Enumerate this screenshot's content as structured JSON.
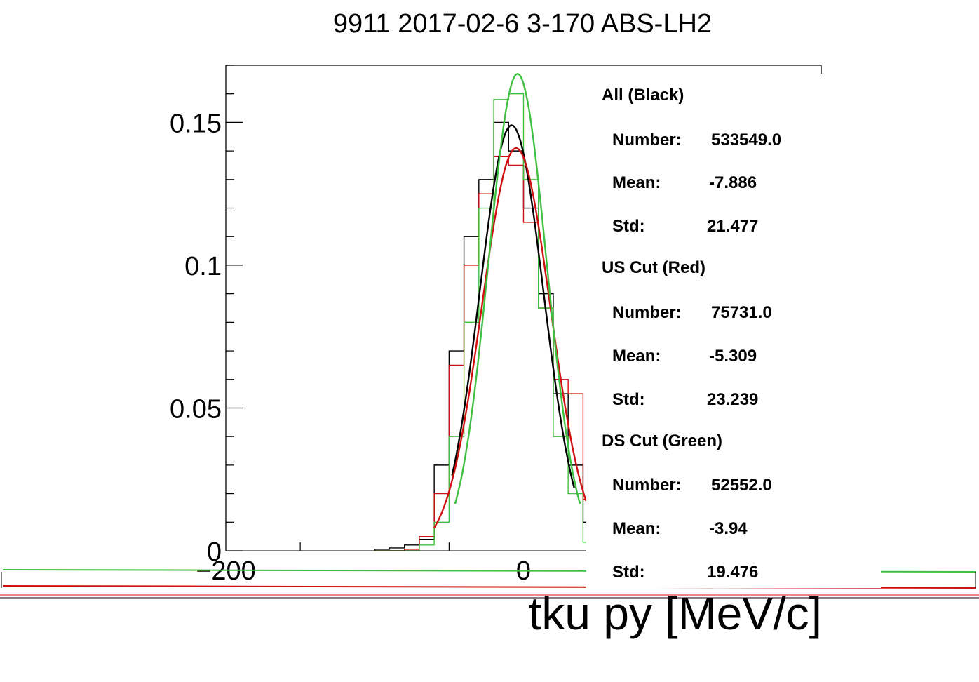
{
  "chart_data": {
    "type": "line",
    "title": "9911 2017-02-6 3-170 ABS-LH2",
    "xlabel": "tku py [MeV/c]",
    "ylabel": "",
    "xlim": [
      -200,
      200
    ],
    "ylim": [
      0,
      0.17
    ],
    "x_ticks": [
      -200,
      0
    ],
    "x_tick_labels": [
      "−200",
      "0"
    ],
    "y_ticks": [
      0,
      0.05,
      0.1,
      0.15
    ],
    "y_tick_labels": [
      "0",
      "0.05",
      "0.1",
      "0.15"
    ],
    "grid": false,
    "legend_placement": "right",
    "bin_edges": [
      -100,
      -90,
      -80,
      -70,
      -60,
      -50,
      -40,
      -30,
      -20,
      -10,
      0,
      10,
      20,
      30,
      40,
      50,
      60,
      70,
      80,
      90,
      100,
      110,
      120
    ],
    "series": [
      {
        "name": "All (Black)",
        "color": "#000000",
        "histogram": [
          0.0005,
          0.001,
          0.002,
          0.004,
          0.03,
          0.07,
          0.11,
          0.13,
          0.15,
          0.14,
          0.12,
          0.09,
          0.055,
          0.03,
          0.01,
          0.004,
          0.002,
          0.001,
          0.0005,
          0,
          0,
          0
        ],
        "fit": {
          "mean": -8,
          "sigma": 21.5,
          "amplitude": 0.149,
          "range": [
            -48,
            34
          ]
        }
      },
      {
        "name": "US Cut (Red)",
        "color": "#d01010",
        "histogram": [
          0,
          0,
          0.0005,
          0.005,
          0.02,
          0.065,
          0.1,
          0.125,
          0.138,
          0.135,
          0.115,
          0.085,
          0.06,
          0.055,
          0.018,
          0.005,
          0.0005,
          0,
          0,
          0,
          0,
          0
        ],
        "fit": {
          "mean": -5,
          "sigma": 23,
          "amplitude": 0.141,
          "range": [
            -60,
            42
          ]
        }
      },
      {
        "name": "DS Cut (Green)",
        "color": "#40c040",
        "histogram": [
          0,
          0,
          0,
          0.002,
          0.01,
          0.04,
          0.08,
          0.12,
          0.158,
          0.16,
          0.13,
          0.085,
          0.04,
          0.02,
          0.003,
          0.001,
          0,
          0,
          0,
          0,
          0,
          0
        ],
        "fit": {
          "mean": -4,
          "sigma": 19.5,
          "amplitude": 0.167,
          "range": [
            -46,
            38
          ]
        }
      }
    ]
  },
  "stats": {
    "blocks": [
      {
        "header": "All (Black)",
        "number_label": "Number:",
        "number": "533549.0",
        "mean_label": "Mean:",
        "mean": "-7.886",
        "std_label": "Std:",
        "std": "21.477"
      },
      {
        "header": "US Cut (Red)",
        "number_label": "Number:",
        "number": "75731.0",
        "mean_label": "Mean:",
        "mean": "-5.309",
        "std_label": "Std:",
        "std": "23.239"
      },
      {
        "header": "DS Cut (Green)",
        "number_label": "Number:",
        "number": "52552.0",
        "mean_label": "Mean:",
        "mean": "-3.94",
        "std_label": "Std:",
        "std": "19.476"
      }
    ]
  }
}
